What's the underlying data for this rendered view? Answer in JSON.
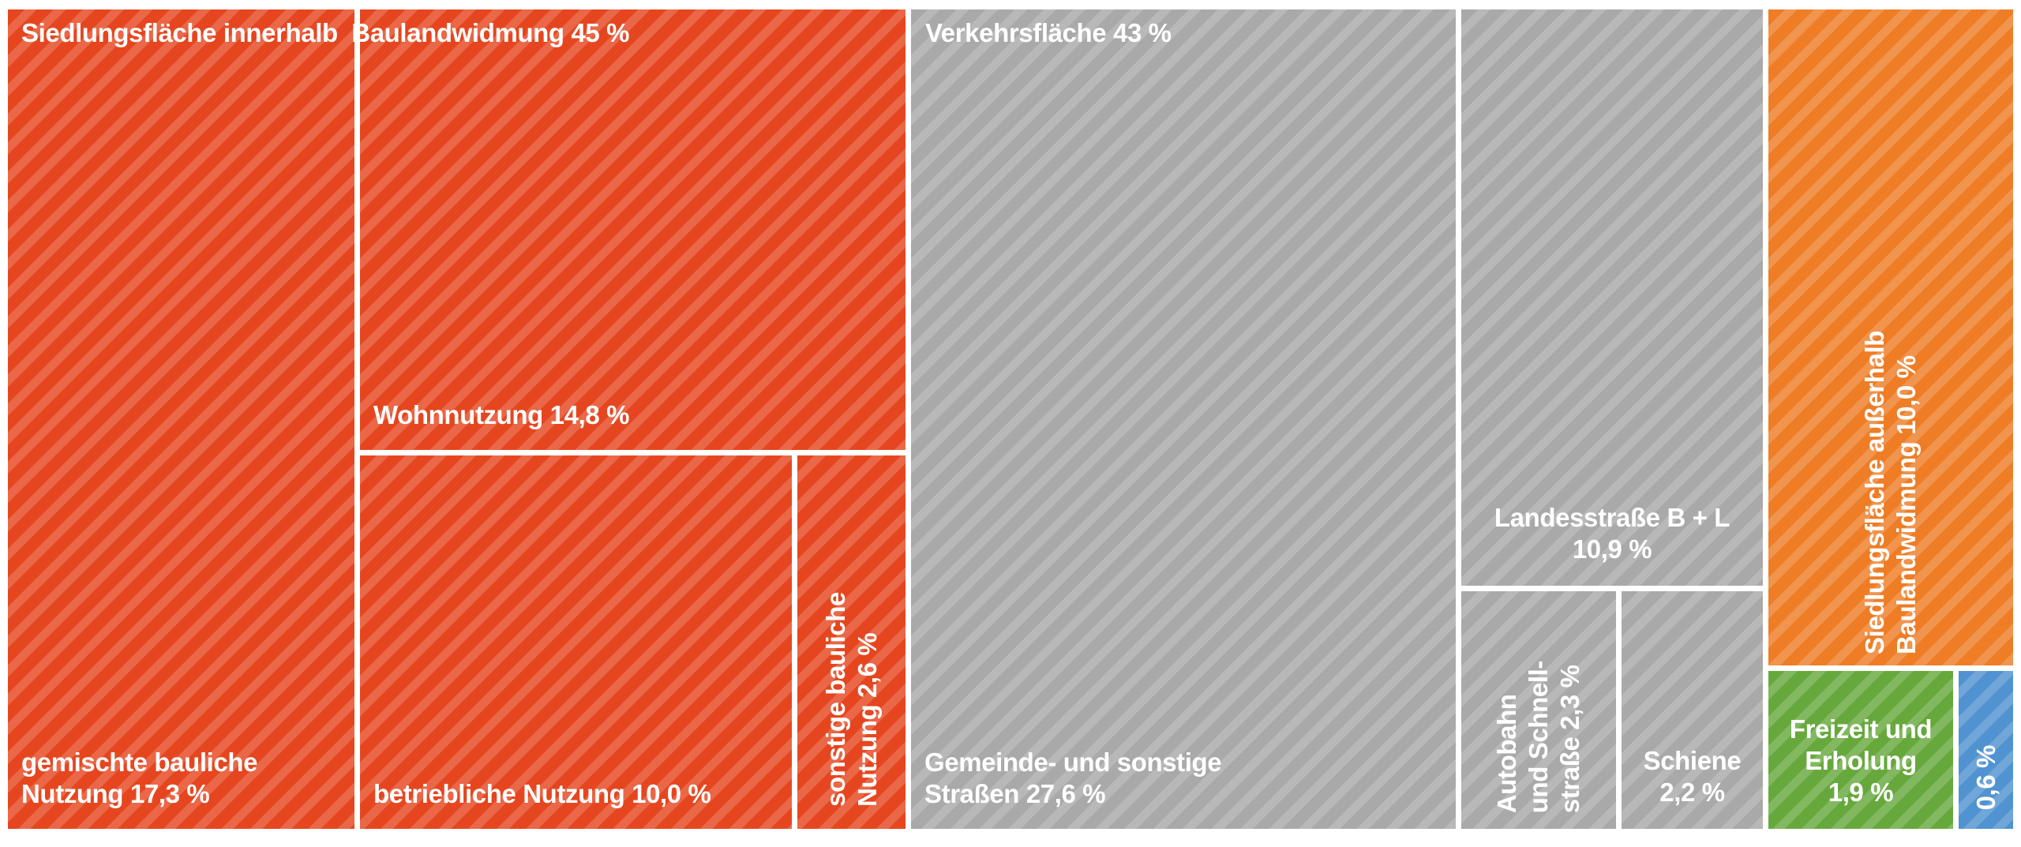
{
  "canvas": {
    "background": "#ffffff",
    "text_color": "#ffffff",
    "pattern": "diagonal-stripes-45deg"
  },
  "colors": {
    "red": "#e6461f",
    "gray": "#a9a9a9",
    "orange": "#ee7d26",
    "green": "#67a83d",
    "blue": "#5093d0"
  },
  "labels": {
    "red_parent": "Siedlungsfläche innerhalb  Baulandwidmung 45 %",
    "gray_parent": "Verkehrsfläche 43 %",
    "gemischte": "gemischte bauliche\nNutzung 17,3 %",
    "wohnnutzung": "Wohnnutzung 14,8 %",
    "betriebliche": "betriebliche Nutzung 10,0 %",
    "sonstige": "sonstige bauliche\nNutzung 2,6 %",
    "gemeinde": "Gemeinde- und sonstige\nStraßen 27,6 %",
    "landesstrasse": "Landesstraße B + L\n10,9 %",
    "autobahn": "Autobahn\nund Schnell-\nstraße 2,3 %",
    "schiene": "Schiene\n2,2 %",
    "ausserhalb": "Siedlungsfläche außerhalb\nBaulandwidmung 10,0 %",
    "freizeit": "Freizeit und\nErholung\n1,9 %",
    "blue_tile": "0,6 %"
  },
  "chart_data": {
    "type": "treemap",
    "unit": "%",
    "number_format": "de (decimal comma)",
    "legend": "none",
    "pattern": "white diagonal hatch stripes on all tiles, white gaps between tiles",
    "nodes": [
      {
        "name": "Siedlungsfläche innerhalb Baulandwidmung",
        "value": 45,
        "color": "#e6461f",
        "children": [
          {
            "name": "gemischte bauliche Nutzung",
            "value": 17.3
          },
          {
            "name": "Wohnnutzung",
            "value": 14.8
          },
          {
            "name": "betriebliche Nutzung",
            "value": 10.0
          },
          {
            "name": "sonstige bauliche Nutzung",
            "value": 2.6
          }
        ]
      },
      {
        "name": "Verkehrsfläche",
        "value": 43,
        "color": "#a9a9a9",
        "children": [
          {
            "name": "Gemeinde- und sonstige Straßen",
            "value": 27.6
          },
          {
            "name": "Landesstraße B + L",
            "value": 10.9
          },
          {
            "name": "Autobahn und Schnellstraße",
            "value": 2.3
          },
          {
            "name": "Schiene",
            "value": 2.2
          }
        ]
      },
      {
        "name": "Siedlungsfläche außerhalb Baulandwidmung",
        "value": 10.0,
        "color": "#ee7d26",
        "children": []
      },
      {
        "name": "Freizeit und Erholung",
        "value": 1.9,
        "color": "#67a83d",
        "children": []
      },
      {
        "name": "",
        "label": "0,6 %",
        "value": 0.6,
        "color": "#5093d0",
        "children": []
      }
    ]
  }
}
